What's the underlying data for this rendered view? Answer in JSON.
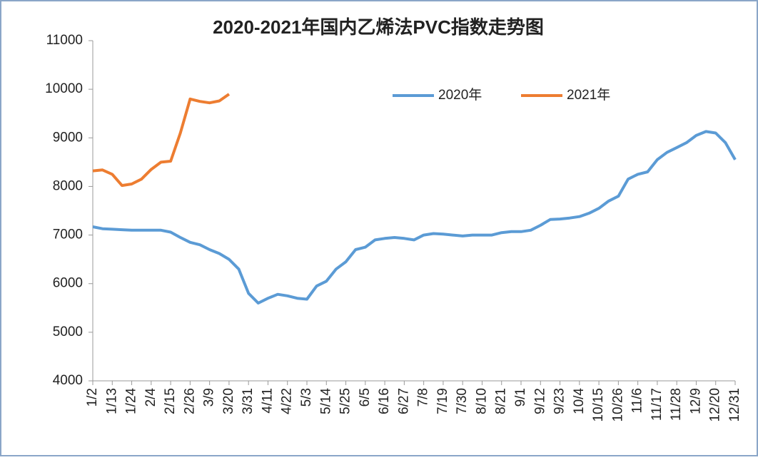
{
  "chart_data": {
    "type": "line",
    "title": "2020-2021年国内乙烯法PVC指数走势图",
    "categories": [
      "1/2",
      null,
      "1/13",
      null,
      "1/24",
      null,
      "2/4",
      null,
      "2/15",
      null,
      "2/26",
      null,
      "3/9",
      null,
      "3/20",
      null,
      "3/31",
      null,
      "4/11",
      null,
      "4/22",
      null,
      "5/3",
      null,
      "5/14",
      null,
      "5/25",
      null,
      "6/5",
      null,
      "6/16",
      null,
      "6/27",
      null,
      "7/8",
      null,
      "7/19",
      null,
      "7/30",
      null,
      "8/10",
      null,
      "8/21",
      null,
      "9/1",
      null,
      "9/12",
      null,
      "9/23",
      null,
      "10/4",
      null,
      "10/15",
      null,
      "10/26",
      null,
      "11/6",
      null,
      "11/17",
      null,
      "11/28",
      null,
      "12/9",
      null,
      "12/20",
      null,
      "12/31"
    ],
    "series": [
      {
        "name": "2020年",
        "color": "#5b9bd5",
        "values": [
          7170,
          7130,
          7120,
          7110,
          7100,
          7100,
          7100,
          7100,
          7060,
          6950,
          6850,
          6800,
          6700,
          6620,
          6500,
          6300,
          5800,
          5600,
          5700,
          5780,
          5750,
          5700,
          5680,
          5950,
          6050,
          6300,
          6450,
          6700,
          6750,
          6900,
          6930,
          6950,
          6930,
          6900,
          7000,
          7030,
          7020,
          7000,
          6980,
          7000,
          7000,
          7000,
          7050,
          7070,
          7070,
          7100,
          7200,
          7320,
          7330,
          7350,
          7380,
          7450,
          7550,
          7700,
          7800,
          8150,
          8250,
          8300,
          8550,
          8700,
          8800,
          8900,
          9050,
          9130,
          9100,
          8900,
          8550
        ]
      },
      {
        "name": "2021年",
        "color": "#ed7d31",
        "values": [
          8320,
          8340,
          8250,
          8020,
          8050,
          8150,
          8350,
          8500,
          8520,
          9100,
          9800,
          9750,
          9720,
          9760,
          9900,
          null,
          null,
          null,
          null,
          null,
          null,
          null,
          null,
          null,
          null,
          null,
          null,
          null,
          null,
          null,
          null,
          null,
          null,
          null,
          null,
          null,
          null,
          null,
          null,
          null,
          null,
          null,
          null,
          null,
          null,
          null,
          null,
          null,
          null,
          null,
          null,
          null,
          null,
          null,
          null,
          null,
          null,
          null,
          null,
          null,
          null,
          null,
          null,
          null,
          null,
          null,
          null
        ]
      }
    ],
    "ylim": [
      4000,
      11000
    ],
    "yticks": [
      4000,
      5000,
      6000,
      7000,
      8000,
      9000,
      10000,
      11000
    ],
    "grid": false,
    "legend": "top"
  }
}
